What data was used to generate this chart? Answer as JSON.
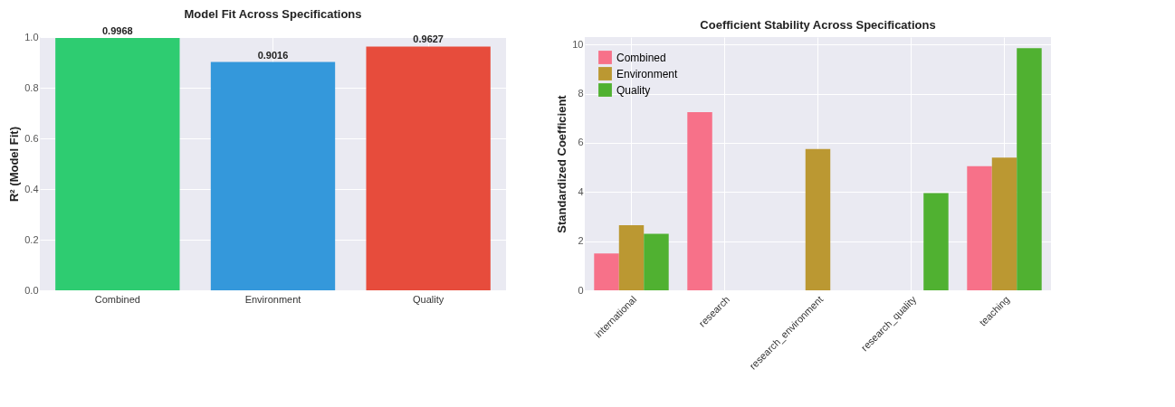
{
  "chart_data": [
    {
      "type": "bar",
      "title": "Model Fit Across Specifications",
      "ylabel": "R² (Model Fit)",
      "categories": [
        "Combined",
        "Environment",
        "Quality"
      ],
      "values": [
        0.9968,
        0.9016,
        0.9627
      ],
      "colors": [
        "#2ecc71",
        "#3498db",
        "#e74c3c"
      ],
      "ylim": [
        0,
        1
      ],
      "yticks": [
        {
          "value": 0,
          "label": "0.0"
        },
        {
          "value": 0.2,
          "label": "0.2"
        },
        {
          "value": 0.4,
          "label": "0.4"
        },
        {
          "value": 0.6,
          "label": "0.6"
        },
        {
          "value": 0.8,
          "label": "0.8"
        },
        {
          "value": 1,
          "label": "1.0"
        }
      ],
      "data_labels": true,
      "grid": true
    },
    {
      "type": "bar",
      "title": "Coefficient Stability Across Specifications",
      "ylabel": "Standardized Coefficient",
      "categories": [
        "international",
        "research",
        "research_environment",
        "research_quality",
        "teaching"
      ],
      "series": [
        {
          "name": "Combined",
          "color": "#f77189",
          "values": [
            1.5,
            7.25,
            null,
            null,
            5.05
          ]
        },
        {
          "name": "Environment",
          "color": "#bb9832",
          "values": [
            2.65,
            null,
            5.75,
            null,
            5.4
          ]
        },
        {
          "name": "Quality",
          "color": "#50b131",
          "values": [
            2.3,
            null,
            null,
            3.95,
            9.85
          ]
        }
      ],
      "ylim": [
        0,
        10.3
      ],
      "yticks": [
        0,
        2,
        4,
        6,
        8,
        10
      ],
      "legend": "top left",
      "grid": true
    }
  ]
}
